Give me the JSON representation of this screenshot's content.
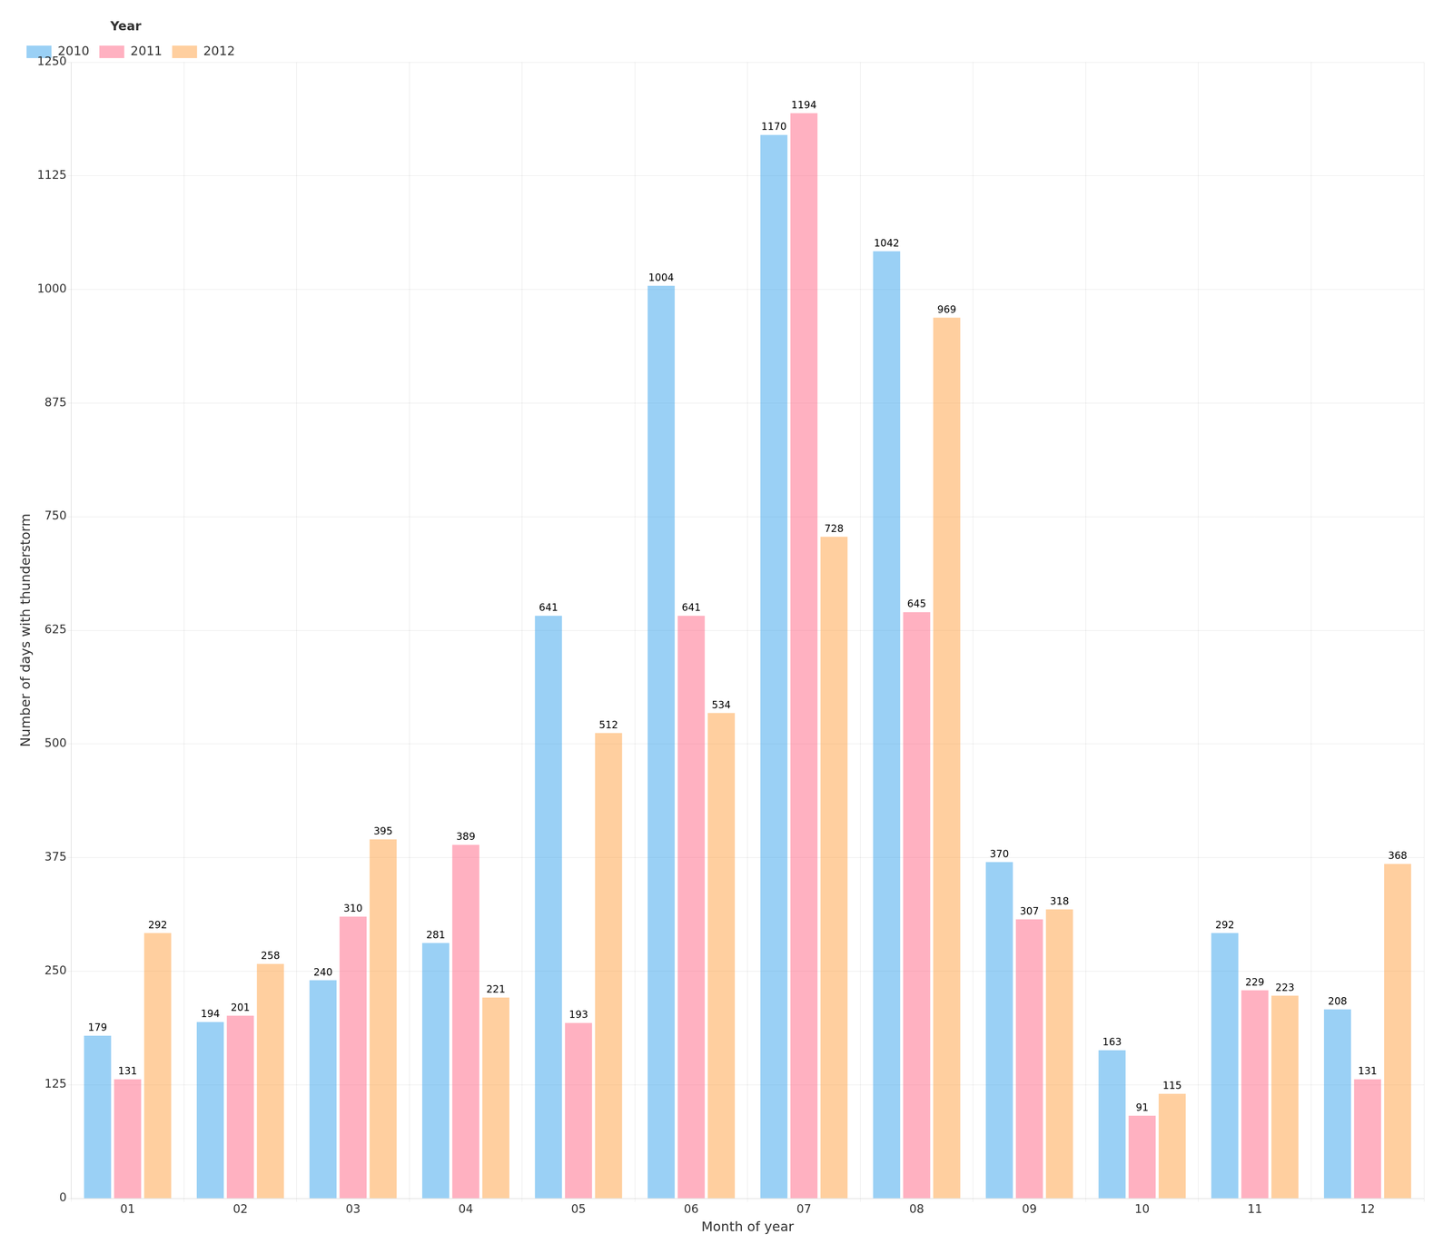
{
  "chart_data": {
    "type": "bar",
    "xlabel": "Month of year",
    "ylabel": "Number of days with thunderstorm",
    "categories": [
      "01",
      "02",
      "03",
      "04",
      "05",
      "06",
      "07",
      "08",
      "09",
      "10",
      "11",
      "12"
    ],
    "series": [
      {
        "name": "2010",
        "values": [
          179,
          194,
          240,
          281,
          641,
          1004,
          1170,
          1042,
          370,
          163,
          292,
          208
        ]
      },
      {
        "name": "2011",
        "values": [
          131,
          201,
          310,
          389,
          193,
          641,
          1194,
          645,
          307,
          91,
          229,
          131
        ]
      },
      {
        "name": "2012",
        "values": [
          292,
          258,
          395,
          221,
          512,
          534,
          728,
          969,
          318,
          115,
          223,
          368
        ]
      }
    ],
    "ylim": [
      0,
      1250
    ],
    "yticks": [
      0,
      125,
      250,
      375,
      500,
      625,
      750,
      875,
      1000,
      1125,
      1250
    ],
    "grid": true,
    "legend": "upper left",
    "legend_title": "Year",
    "data_labels": true
  }
}
